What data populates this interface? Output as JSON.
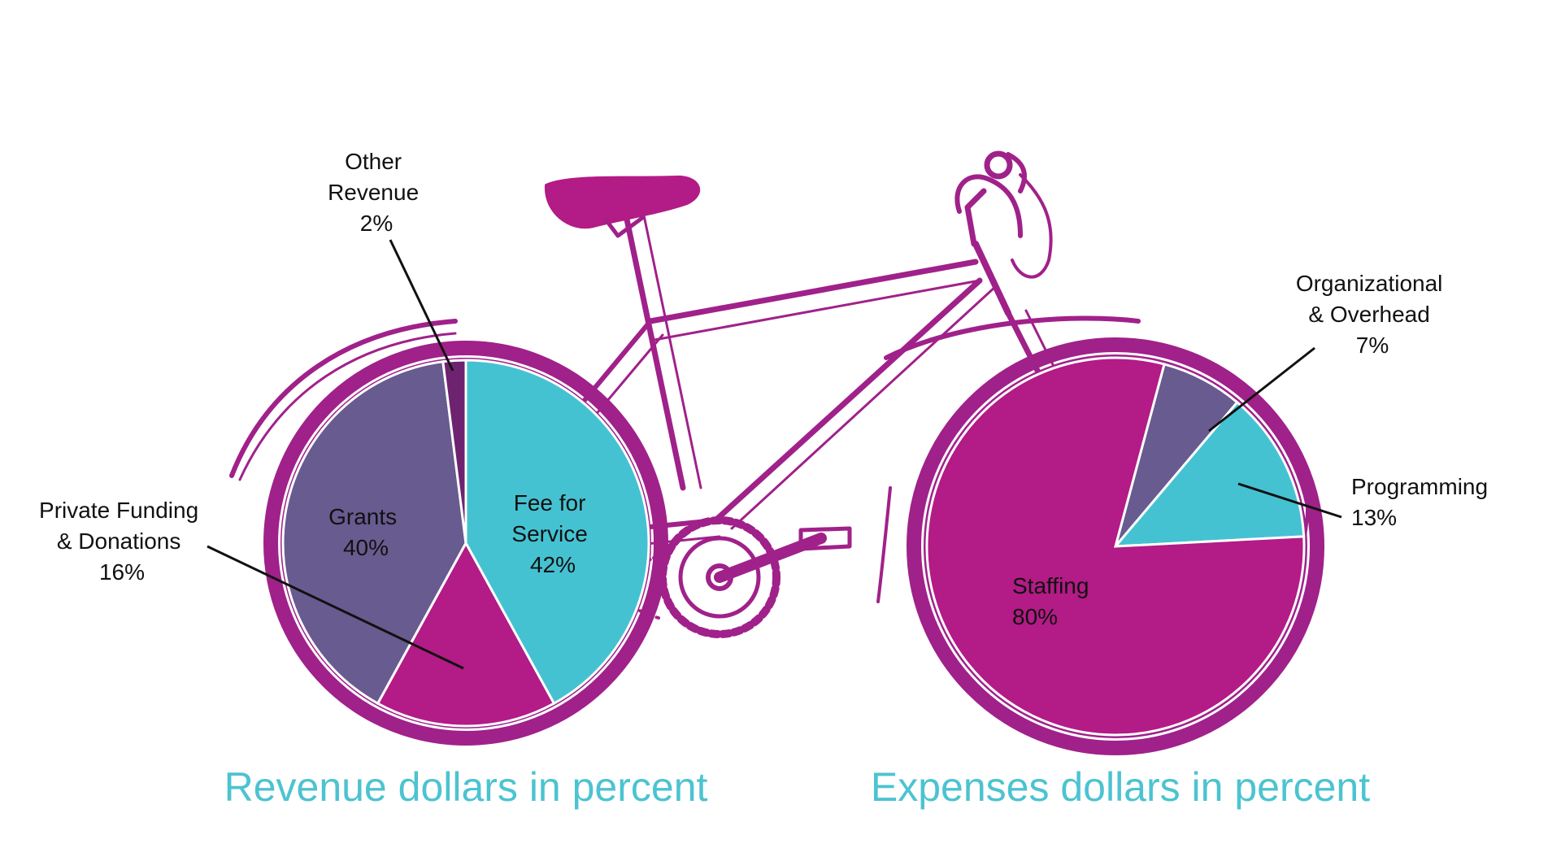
{
  "colors": {
    "magenta": "#b31b86",
    "tire": "#a0218a",
    "cyan": "#45c2d2",
    "purple": "#675b8f",
    "darkpurple": "#6e2370",
    "caption": "#4cc3d1",
    "label": "#111111"
  },
  "chart_data": [
    {
      "type": "pie",
      "title": "Revenue dollars in percent",
      "start_angle_deg": 0,
      "slices": [
        {
          "label_lines": [
            "Fee for",
            "Service"
          ],
          "pct_text": "42%",
          "value": 42,
          "color": "#45c2d2"
        },
        {
          "label_lines": [
            "Private Funding",
            "& Donations"
          ],
          "pct_text": "16%",
          "value": 16,
          "color": "#b31b86"
        },
        {
          "label_lines": [
            "Grants"
          ],
          "pct_text": "40%",
          "value": 40,
          "color": "#675b8f"
        },
        {
          "label_lines": [
            "Other",
            "Revenue"
          ],
          "pct_text": "2%",
          "value": 2,
          "color": "#6e2370"
        }
      ]
    },
    {
      "type": "pie",
      "title": "Expenses dollars in percent",
      "start_angle_deg": 15,
      "slices": [
        {
          "label_lines": [
            "Organizational",
            "& Overhead"
          ],
          "pct_text": "7%",
          "value": 7,
          "color": "#675b8f"
        },
        {
          "label_lines": [
            "Programming"
          ],
          "pct_text": "13%",
          "value": 13,
          "color": "#45c2d2"
        },
        {
          "label_lines": [
            "Staffing"
          ],
          "pct_text": "80%",
          "value": 80,
          "color": "#b31b86"
        }
      ]
    }
  ]
}
